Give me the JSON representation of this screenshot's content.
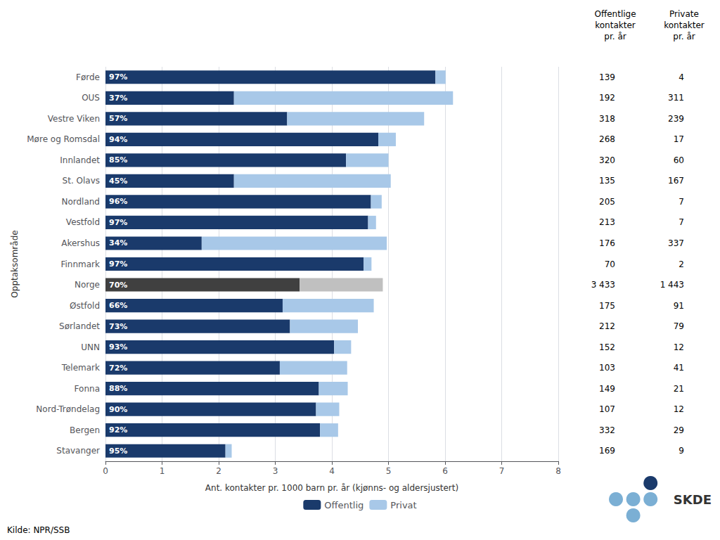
{
  "chart_data": {
    "type": "bar",
    "orientation": "horizontal",
    "stacked": true,
    "xlabel": "Ant. kontakter pr. 1000 barn pr. år (kjønns- og aldersjustert)",
    "ylabel": "Opptaksområde",
    "categories": [
      "Førde",
      "OUS",
      "Vestre Viken",
      "Møre og Romsdal",
      "Innlandet",
      "St. Olavs",
      "Nordland",
      "Vestfold",
      "Akershus",
      "Finnmark",
      "Norge",
      "Østfold",
      "Sørlandet",
      "UNN",
      "Telemark",
      "Fonna",
      "Nord-Trøndelag",
      "Bergen",
      "Stavanger"
    ],
    "series": [
      {
        "name": "Offentlig",
        "color": "#1A3A6B",
        "colors": [
          "#1A3A6B",
          "#1A3A6B",
          "#1A3A6B",
          "#1A3A6B",
          "#1A3A6B",
          "#1A3A6B",
          "#1A3A6B",
          "#1A3A6B",
          "#1A3A6B",
          "#1A3A6B",
          "#404040",
          "#1A3A6B",
          "#1A3A6B",
          "#1A3A6B",
          "#1A3A6B",
          "#1A3A6B",
          "#1A3A6B",
          "#1A3A6B",
          "#1A3A6B"
        ],
        "values": [
          5.83,
          2.27,
          3.21,
          4.82,
          4.25,
          2.27,
          4.69,
          4.64,
          1.7,
          4.56,
          3.43,
          3.13,
          3.26,
          4.04,
          3.08,
          3.77,
          3.72,
          3.79,
          2.12
        ],
        "bar_labels": [
          "97%",
          "37%",
          "57%",
          "94%",
          "85%",
          "45%",
          "96%",
          "97%",
          "34%",
          "97%",
          "70%",
          "66%",
          "73%",
          "93%",
          "72%",
          "88%",
          "90%",
          "92%",
          "95%"
        ]
      },
      {
        "name": "Privat",
        "color": "#A8C8E8",
        "colors": [
          "#A8C8E8",
          "#A8C8E8",
          "#A8C8E8",
          "#A8C8E8",
          "#A8C8E8",
          "#A8C8E8",
          "#A8C8E8",
          "#A8C8E8",
          "#A8C8E8",
          "#A8C8E8",
          "#C0C0C0",
          "#A8C8E8",
          "#A8C8E8",
          "#A8C8E8",
          "#A8C8E8",
          "#A8C8E8",
          "#A8C8E8",
          "#A8C8E8",
          "#A8C8E8"
        ],
        "values": [
          0.18,
          3.87,
          2.42,
          0.31,
          0.75,
          2.77,
          0.19,
          0.14,
          3.27,
          0.14,
          1.47,
          1.61,
          1.2,
          0.3,
          1.19,
          0.51,
          0.41,
          0.32,
          0.11
        ]
      }
    ],
    "xlim": [
      0,
      8
    ],
    "xticks": [
      0,
      1,
      2,
      3,
      4,
      5,
      6,
      7,
      8
    ],
    "grid": true,
    "legend": "bottom",
    "table": {
      "columns": [
        {
          "header": "Offentlige\nkontakter\npr. år",
          "values": [
            "139",
            "192",
            "318",
            "268",
            "320",
            "135",
            "205",
            "213",
            "176",
            "70",
            "3 433",
            "175",
            "212",
            "152",
            "103",
            "149",
            "107",
            "332",
            "169"
          ]
        },
        {
          "header": "Private\nkontakter\npr. år",
          "values": [
            "4",
            "311",
            "239",
            "17",
            "60",
            "167",
            "7",
            "7",
            "337",
            "2",
            "1 443",
            "91",
            "79",
            "12",
            "41",
            "21",
            "12",
            "29",
            "9"
          ]
        }
      ]
    },
    "source": "Kilde: NPR/SSB",
    "logo": {
      "text": "SKDE",
      "colors": [
        "#1A3A6B",
        "#7BAFD4"
      ]
    }
  }
}
